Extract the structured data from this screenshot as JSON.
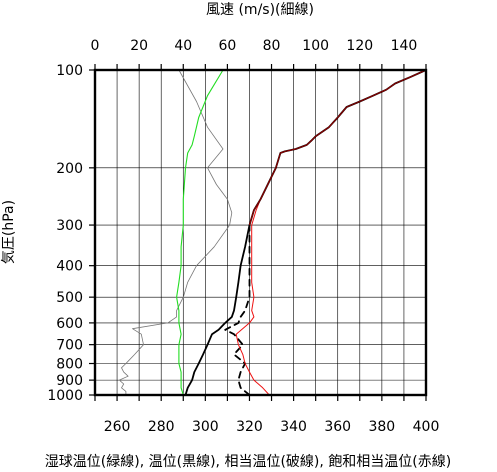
{
  "chart_data": {
    "type": "line",
    "title": "",
    "x_top_label": "風速 (m/s)(細線)",
    "x_bottom_label": "湿球温位(緑線), 温位(黒線), 相当温位(破線), 飽和相当温位(赤線)",
    "ylabel": "気圧(hPa)",
    "y_scale": "log",
    "y_reversed": true,
    "ylim": [
      100,
      1000
    ],
    "x_top_lim": [
      0,
      150
    ],
    "x_top_ticks": [
      0,
      20,
      40,
      60,
      80,
      100,
      120,
      140
    ],
    "x_bottom_lim": [
      250,
      400
    ],
    "x_bottom_ticks": [
      260,
      280,
      300,
      320,
      340,
      360,
      380,
      400
    ],
    "y_ticks": [
      100,
      200,
      300,
      400,
      500,
      600,
      700,
      800,
      900,
      1000
    ],
    "grid": true,
    "colors": {
      "wind": "#777777",
      "wet_bulb_theta": "#22dd22",
      "theta": "#000000",
      "theta_e": "#000000",
      "theta_es": "#ee1111",
      "theta_upper_overlap": "#880000"
    },
    "series": [
      {
        "key": "wind",
        "axis": "top",
        "style": "thin",
        "p": [
          1000,
          975,
          950,
          925,
          900,
          875,
          850,
          825,
          800,
          750,
          700,
          650,
          625,
          600,
          575,
          550,
          500,
          450,
          400,
          350,
          300,
          275,
          250,
          225,
          200,
          175,
          150,
          125,
          100
        ],
        "x": [
          14,
          14,
          12,
          13,
          11,
          15,
          13,
          12,
          14,
          18,
          22,
          21,
          17,
          33,
          37,
          37,
          40,
          42,
          46,
          54,
          61,
          62,
          60,
          55,
          51,
          58,
          51,
          46,
          38
        ]
      },
      {
        "key": "wet_bulb_theta",
        "axis": "bottom",
        "p": [
          1000,
          950,
          900,
          850,
          800,
          750,
          700,
          650,
          600,
          550,
          500,
          450,
          400,
          350,
          300,
          250,
          200,
          180,
          170,
          160,
          140,
          120,
          100
        ],
        "x": [
          290,
          289,
          289,
          289,
          288,
          288,
          288,
          289,
          288,
          288,
          287,
          288,
          289,
          289,
          290,
          290,
          291,
          292,
          294,
          295,
          297,
          301,
          308
        ]
      },
      {
        "key": "theta",
        "axis": "bottom",
        "p": [
          1000,
          950,
          900,
          850,
          800,
          750,
          700,
          650,
          630,
          600,
          575,
          550,
          500,
          450,
          400,
          350,
          300,
          270,
          250,
          200,
          180,
          178,
          175,
          170,
          165,
          160,
          150,
          140,
          130,
          125,
          120,
          115,
          110,
          105,
          100
        ],
        "x": [
          291,
          292,
          294,
          295,
          297,
          299,
          301,
          303,
          306,
          309,
          312,
          313,
          314,
          315,
          316,
          318,
          320,
          322,
          325,
          332,
          334,
          336,
          341,
          346,
          348,
          350,
          356,
          360,
          364,
          370,
          376,
          382,
          386,
          393,
          400
        ]
      },
      {
        "key": "theta_e",
        "axis": "bottom",
        "style": "dashed",
        "p": [
          1000,
          950,
          900,
          850,
          800,
          750,
          700,
          650,
          630,
          600,
          575,
          550,
          500,
          450,
          400,
          350,
          300
        ],
        "x": [
          320,
          316,
          315,
          316,
          318,
          313,
          317,
          313,
          309,
          315,
          316,
          318,
          320,
          320,
          320,
          320,
          320
        ]
      },
      {
        "key": "theta_es",
        "axis": "bottom",
        "p": [
          1000,
          950,
          900,
          850,
          800,
          750,
          700,
          650,
          600,
          575,
          550,
          500,
          450,
          400,
          350,
          300,
          270,
          250,
          200,
          180,
          178,
          175,
          170,
          165,
          160,
          150,
          140,
          130,
          125,
          120,
          115,
          110,
          105,
          100
        ],
        "x": [
          329,
          326,
          322,
          320,
          318,
          317,
          315,
          314,
          320,
          322,
          321,
          322,
          321,
          321,
          321,
          321,
          323,
          325,
          332,
          334,
          336,
          341,
          346,
          348,
          350,
          356,
          360,
          364,
          370,
          376,
          382,
          386,
          393,
          400
        ]
      }
    ]
  }
}
